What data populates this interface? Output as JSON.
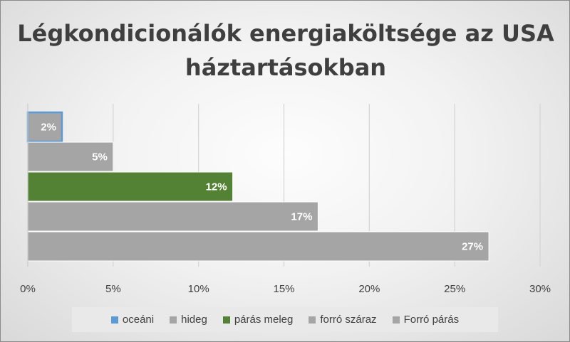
{
  "chart_data": {
    "type": "bar",
    "orientation": "horizontal",
    "title": "Légkondicionálók energiaköltsége az USA háztartásokban",
    "categories": [
      "oceáni",
      "hideg",
      "párás meleg",
      "forró száraz",
      "Forró párás"
    ],
    "values": [
      2,
      5,
      12,
      17,
      27
    ],
    "value_labels": [
      "2%",
      "5%",
      "12%",
      "17%",
      "27%"
    ],
    "colors": [
      "#a5a5a5",
      "#a5a5a5",
      "#548235",
      "#a5a5a5",
      "#a5a5a5"
    ],
    "highlight": {
      "category": "oceáni",
      "border_color": "#5b9bd5"
    },
    "legend_colors": [
      "#5b9bd5",
      "#a5a5a5",
      "#548235",
      "#a5a5a5",
      "#a5a5a5"
    ],
    "xlim": [
      0,
      30
    ],
    "xticks": [
      "0%",
      "5%",
      "10%",
      "15%",
      "20%",
      "25%",
      "30%"
    ],
    "grid": true,
    "legend_position": "bottom"
  }
}
